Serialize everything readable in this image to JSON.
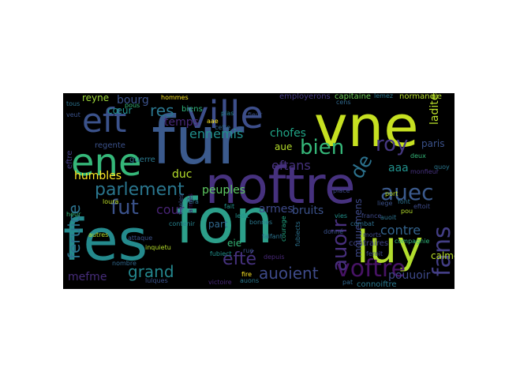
{
  "cloud": {
    "background": "#000000",
    "words": [
      {
        "text": "vne",
        "color": "#c6e021"
      },
      {
        "text": "fon",
        "color": "#2c9f8a"
      },
      {
        "text": "fur",
        "color": "#3b5a8d"
      },
      {
        "text": "noftre",
        "color": "#46317e"
      },
      {
        "text": "fes",
        "color": "#248a8d"
      },
      {
        "text": "luy",
        "color": "#b2dd2d"
      },
      {
        "text": "ville",
        "color": "#3d4e8a"
      },
      {
        "text": "eft",
        "color": "#3b528b"
      },
      {
        "text": "ene",
        "color": "#35b779"
      },
      {
        "text": "parlement",
        "color": "#2a768e"
      },
      {
        "text": "voftre",
        "color": "#471365"
      },
      {
        "text": "auec",
        "color": "#3b5a8d"
      },
      {
        "text": "roy",
        "color": "#453781"
      },
      {
        "text": "fut",
        "color": "#3b528b"
      },
      {
        "text": "efté",
        "color": "#46327e"
      },
      {
        "text": "grand",
        "color": "#24878e"
      },
      {
        "text": "auoient",
        "color": "#3e4a89"
      },
      {
        "text": "auoir",
        "color": "#472f7d"
      },
      {
        "text": "bien",
        "color": "#35b779"
      },
      {
        "text": "ennemis",
        "color": "#21908d"
      },
      {
        "text": "fans",
        "color": "#433e85"
      },
      {
        "text": "de",
        "color": "#2c728e"
      },
      {
        "text": "eftans",
        "color": "#46327e"
      },
      {
        "text": "res",
        "color": "#2a768e"
      },
      {
        "text": "chofes",
        "color": "#20a486"
      },
      {
        "text": "peuples",
        "color": "#5ec962"
      },
      {
        "text": "cour",
        "color": "#482475"
      },
      {
        "text": "duc",
        "color": "#b5de2b"
      },
      {
        "text": "armes",
        "color": "#3e4a89"
      },
      {
        "text": "bruits",
        "color": "#3b528b"
      },
      {
        "text": "contre",
        "color": "#33638d"
      },
      {
        "text": "pouuoir",
        "color": "#3e4989"
      },
      {
        "text": "mefme",
        "color": "#472d7b"
      },
      {
        "text": "feruice",
        "color": "#2c728e"
      },
      {
        "text": "reyne",
        "color": "#9fda3a"
      },
      {
        "text": "bourg",
        "color": "#3b528b"
      },
      {
        "text": "humbles",
        "color": "#fde725"
      },
      {
        "text": "temps",
        "color": "#482878"
      },
      {
        "text": "aaa",
        "color": "#21918c"
      },
      {
        "text": "paris",
        "color": "#3b528b"
      },
      {
        "text": "ladite",
        "color": "#b8de29"
      },
      {
        "text": "calmer",
        "color": "#b8de29"
      },
      {
        "text": "part",
        "color": "#31688e"
      },
      {
        "text": "eie",
        "color": "#35b779"
      },
      {
        "text": "aue",
        "color": "#b5de2b"
      },
      {
        "text": "cœur",
        "color": "#21918c"
      },
      {
        "text": "regente",
        "color": "#3b528b"
      },
      {
        "text": "guerre",
        "color": "#2a788e"
      },
      {
        "text": "eftre",
        "color": "#433e85"
      },
      {
        "text": "mouuemens",
        "color": "#3e4989"
      },
      {
        "text": "contraires",
        "color": "#414487"
      },
      {
        "text": "connoiftre",
        "color": "#2a788e"
      },
      {
        "text": "employerons",
        "color": "#443983"
      },
      {
        "text": "capitaine",
        "color": "#6ccd5a"
      },
      {
        "text": "normandie",
        "color": "#b5de2b"
      },
      {
        "text": "hommes",
        "color": "#fde725"
      },
      {
        "text": "biens",
        "color": "#2fb47c"
      },
      {
        "text": "plas",
        "color": "#26828e"
      },
      {
        "text": "lemez",
        "color": "#2a768e"
      },
      {
        "text": "ledit",
        "color": "#21918c"
      },
      {
        "text": "liege",
        "color": "#3b528b"
      },
      {
        "text": "port",
        "color": "#b8de29"
      },
      {
        "text": "font",
        "color": "#2c728e"
      },
      {
        "text": "pou",
        "color": "#b5de2b"
      },
      {
        "text": "france",
        "color": "#3e4989"
      },
      {
        "text": "combat",
        "color": "#2e6f8e"
      },
      {
        "text": "morts",
        "color": "#3e4989"
      },
      {
        "text": "donné",
        "color": "#3b528b"
      },
      {
        "text": "pat",
        "color": "#31688e"
      },
      {
        "text": "courage",
        "color": "#22a884"
      },
      {
        "text": "fubiects",
        "color": "#2c728e"
      },
      {
        "text": "fubiect",
        "color": "#21918c"
      },
      {
        "text": "inquietu",
        "color": "#b5de2b"
      },
      {
        "text": "attaque",
        "color": "#3b528b"
      },
      {
        "text": "loura",
        "color": "#bddf26"
      },
      {
        "text": "fideles",
        "color": "#3b528b"
      },
      {
        "text": "armés",
        "color": "#471365"
      },
      {
        "text": "contenir",
        "color": "#26828e"
      },
      {
        "text": "victoire",
        "color": "#482878"
      },
      {
        "text": "auons",
        "color": "#2a788e"
      },
      {
        "text": "fire",
        "color": "#fde725"
      },
      {
        "text": "rue",
        "color": "#3b528b"
      },
      {
        "text": "cens",
        "color": "#31688e"
      },
      {
        "text": "vies",
        "color": "#21918c"
      },
      {
        "text": "eftoit",
        "color": "#3e4a89"
      },
      {
        "text": "monfieur",
        "color": "#46317e"
      },
      {
        "text": "quoy",
        "color": "#2a768e"
      },
      {
        "text": "heur",
        "color": "#35b779"
      },
      {
        "text": "nombre",
        "color": "#31688e"
      },
      {
        "text": "lulques",
        "color": "#3b528b"
      },
      {
        "text": "fera",
        "color": "#2c728e"
      },
      {
        "text": "fait",
        "color": "#21918c"
      },
      {
        "text": "place",
        "color": "#3e4989"
      },
      {
        "text": "faifant",
        "color": "#2c728e"
      },
      {
        "text": "depuis",
        "color": "#482878"
      },
      {
        "text": "pous",
        "color": "#35b779"
      },
      {
        "text": "aae",
        "color": "#fde725"
      },
      {
        "text": "fieur",
        "color": "#3b528b"
      },
      {
        "text": "cefte",
        "color": "#31688e"
      },
      {
        "text": "auoit",
        "color": "#2c728e"
      },
      {
        "text": "compagnie",
        "color": "#2fb47c"
      },
      {
        "text": "feroit",
        "color": "#3e4989"
      },
      {
        "text": "autres",
        "color": "#b5de2b"
      },
      {
        "text": "bonnes",
        "color": "#2a788e"
      },
      {
        "text": "deux",
        "color": "#35b779"
      },
      {
        "text": "tous",
        "color": "#2c728e"
      },
      {
        "text": "veut",
        "color": "#3b528b"
      }
    ]
  }
}
